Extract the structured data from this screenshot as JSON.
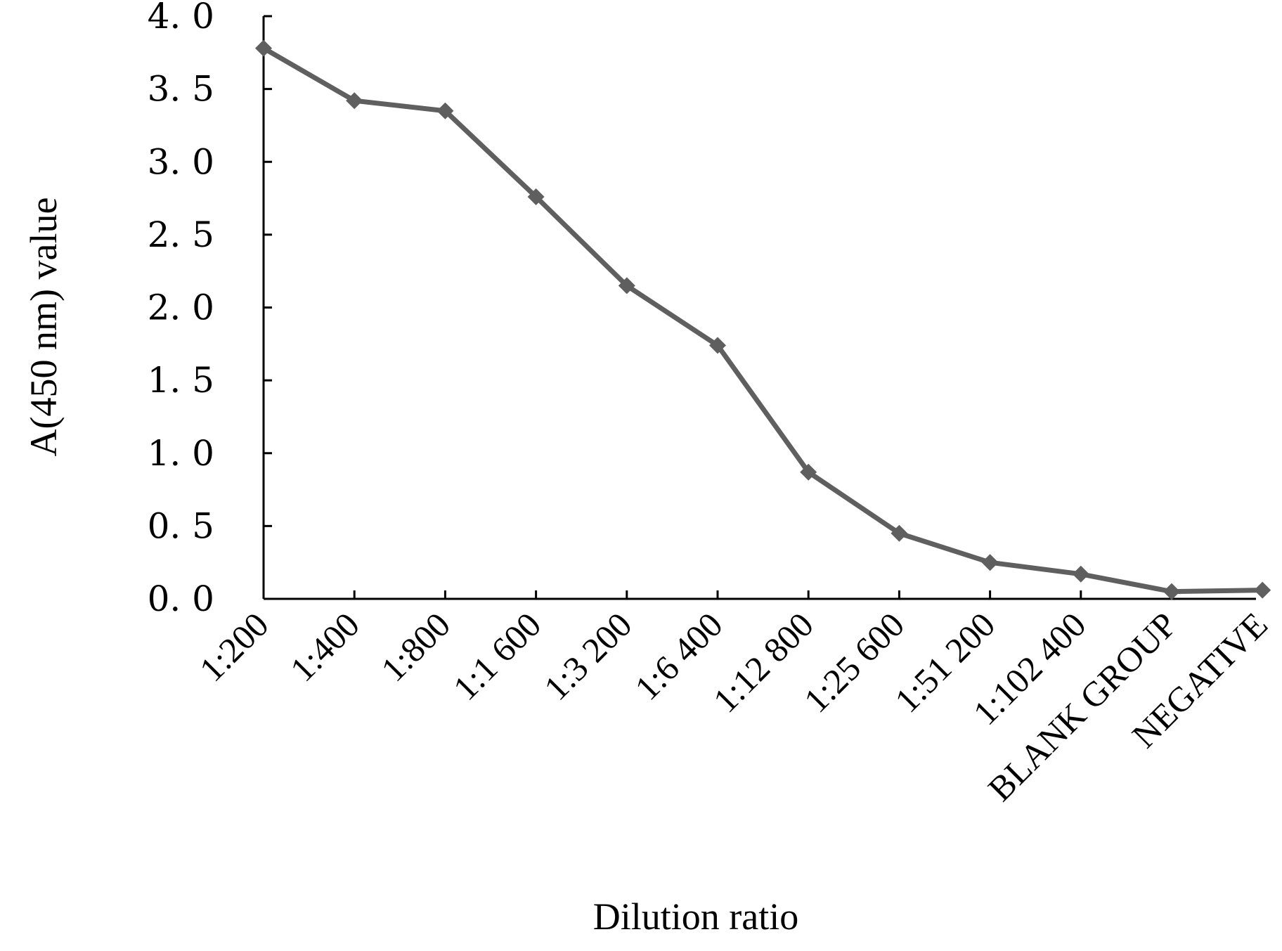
{
  "chart_data": {
    "type": "line",
    "title": "",
    "xlabel": "Dilution ratio",
    "ylabel": "A(450 nm) value",
    "categories": [
      "1:200",
      "1:400",
      "1:800",
      "1:1  600",
      "1:3  200",
      "1:6  400",
      "1:12  800",
      "1:25  600",
      "1:51  200",
      "1:102  400",
      "BLANK GROUP",
      "NEGATIVE"
    ],
    "series": [
      {
        "values": [
          3.78,
          3.42,
          3.35,
          2.76,
          2.15,
          1.74,
          0.87,
          0.45,
          0.25,
          0.17,
          0.05,
          0.06
        ]
      }
    ],
    "yticks": [
      "0. 0",
      "0. 5",
      "1. 0",
      "1. 5",
      "2. 0",
      "2. 5",
      "3. 0",
      "3. 5",
      "4. 0"
    ],
    "ylim": [
      0,
      4
    ],
    "grid": false,
    "legend": "none",
    "line_color": "#5f5f5f",
    "marker": "diamond"
  }
}
